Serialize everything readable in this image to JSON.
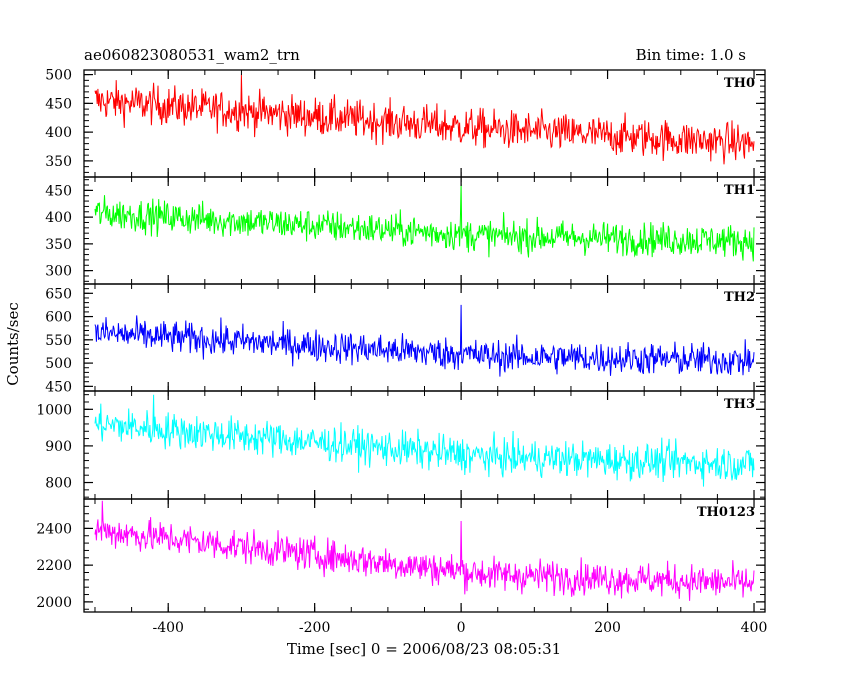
{
  "header": {
    "left": "ae060823080531_wam2_trn",
    "right": "Bin time: 1.0 s"
  },
  "axes": {
    "xlabel": "Time [sec] 0 = 2006/08/23 08:05:31",
    "ylabel": "Counts/sec"
  },
  "chart_data": {
    "type": "line",
    "title": "ae060823080531_wam2_trn",
    "subtitle": "Bin time: 1.0 s",
    "xlabel": "Time [sec] 0 = 2006/08/23 08:05:31",
    "ylabel": "Counts/sec",
    "xlim": [
      -515,
      415
    ],
    "x_ticks": [
      -400,
      -200,
      0,
      200,
      400
    ],
    "x_range": [
      -500,
      400
    ],
    "bin_time": 1.0,
    "grid": false,
    "panels": [
      {
        "name": "TH0",
        "color": "#ff0000",
        "ylim": [
          322,
          508
        ],
        "yticks": [
          350,
          400,
          450,
          500
        ],
        "trend_start": 455,
        "trend_mid": 405,
        "trend_end": 380,
        "noise": 24,
        "spikes": [
          [
            -300,
            500
          ]
        ]
      },
      {
        "name": "TH1",
        "color": "#00ff00",
        "ylim": [
          275,
          475
        ],
        "yticks": [
          300,
          350,
          400,
          450
        ],
        "trend_start": 408,
        "trend_mid": 365,
        "trend_end": 355,
        "noise": 22,
        "spikes": [
          [
            0,
            462
          ]
        ]
      },
      {
        "name": "TH2",
        "color": "#0000ff",
        "ylim": [
          440,
          670
        ],
        "yticks": [
          450,
          500,
          550,
          600,
          650
        ],
        "trend_start": 565,
        "trend_mid": 515,
        "trend_end": 505,
        "noise": 25,
        "spikes": [
          [
            0,
            625
          ]
        ]
      },
      {
        "name": "TH3",
        "color": "#00ffff",
        "ylim": [
          755,
          1050
        ],
        "yticks": [
          800,
          900,
          1000
        ],
        "trend_start": 960,
        "trend_mid": 870,
        "trend_end": 850,
        "noise": 35,
        "spikes": [
          [
            -420,
            1040
          ]
        ]
      },
      {
        "name": "TH0123",
        "color": "#ff00ff",
        "ylim": [
          1945,
          2560
        ],
        "yticks": [
          2000,
          2200,
          2400
        ],
        "trend_start": 2390,
        "trend_mid": 2150,
        "trend_end": 2100,
        "noise": 65,
        "spikes": [
          [
            0,
            2440
          ],
          [
            -490,
            2550
          ]
        ]
      }
    ]
  }
}
